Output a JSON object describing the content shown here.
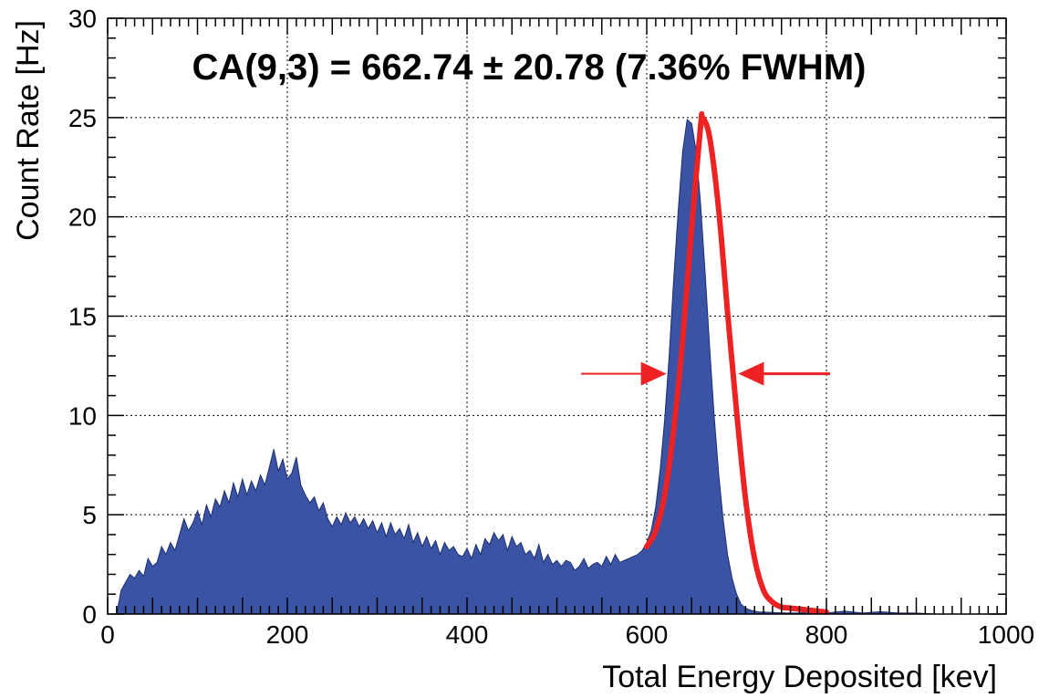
{
  "chart_data": {
    "type": "area",
    "title": "CA(9,3) = 662.74 ± 20.78 (7.36% FWHM)",
    "xlabel": "Total Energy Deposited [kev]",
    "ylabel": "Count Rate [Hz]",
    "xlim": [
      0,
      1000
    ],
    "ylim": [
      0,
      30
    ],
    "xticks": [
      0,
      200,
      400,
      600,
      800,
      1000
    ],
    "yticks": [
      0,
      5,
      10,
      15,
      20,
      25,
      30
    ],
    "grid": true,
    "fill_color": "#3a53a4",
    "fit_color": "#ee2222",
    "arrow_color": "#ee2222",
    "series": [
      {
        "type": "histogram",
        "x": [
          10,
          15,
          20,
          25,
          30,
          35,
          40,
          45,
          50,
          55,
          60,
          65,
          70,
          75,
          80,
          85,
          90,
          95,
          100,
          105,
          110,
          115,
          120,
          125,
          130,
          135,
          140,
          145,
          150,
          155,
          160,
          165,
          170,
          175,
          180,
          185,
          190,
          195,
          200,
          205,
          210,
          215,
          220,
          225,
          230,
          235,
          240,
          245,
          250,
          255,
          260,
          265,
          270,
          275,
          280,
          285,
          290,
          295,
          300,
          305,
          310,
          315,
          320,
          325,
          330,
          335,
          340,
          345,
          350,
          355,
          360,
          365,
          370,
          375,
          380,
          385,
          390,
          395,
          400,
          405,
          410,
          415,
          420,
          425,
          430,
          435,
          440,
          445,
          450,
          455,
          460,
          465,
          470,
          475,
          480,
          485,
          490,
          495,
          500,
          505,
          510,
          515,
          520,
          525,
          530,
          535,
          540,
          545,
          550,
          555,
          560,
          565,
          570,
          575,
          580,
          585,
          590,
          595,
          600,
          605,
          610,
          615,
          620,
          625,
          630,
          635,
          640,
          645,
          650,
          655,
          660,
          665,
          670,
          675,
          680,
          685,
          690,
          695,
          700,
          705,
          710,
          715,
          720,
          725,
          730,
          740,
          750,
          760,
          770,
          780,
          800,
          820,
          840,
          860,
          880,
          900,
          920,
          940,
          960,
          980,
          990
        ],
        "y": [
          0.0,
          1.2,
          1.6,
          2.0,
          1.8,
          2.2,
          1.9,
          2.8,
          2.4,
          2.6,
          3.4,
          3.0,
          3.6,
          3.2,
          4.0,
          4.8,
          4.2,
          4.6,
          5.2,
          4.5,
          5.5,
          4.9,
          5.8,
          5.4,
          6.2,
          5.6,
          6.6,
          5.9,
          6.8,
          6.0,
          6.7,
          6.2,
          7.0,
          6.5,
          7.4,
          8.3,
          7.2,
          7.8,
          6.8,
          7.1,
          7.9,
          6.5,
          6.0,
          5.6,
          5.9,
          5.2,
          5.6,
          4.8,
          4.4,
          4.9,
          4.5,
          5.1,
          4.6,
          4.9,
          4.4,
          4.8,
          4.3,
          4.7,
          4.1,
          4.6,
          3.9,
          4.6,
          4.0,
          4.3,
          3.8,
          4.5,
          3.6,
          4.1,
          3.4,
          3.9,
          3.3,
          3.7,
          3.0,
          3.6,
          3.2,
          3.4,
          3.0,
          2.9,
          3.3,
          2.8,
          3.5,
          3.0,
          3.8,
          3.5,
          4.1,
          3.7,
          4.0,
          3.2,
          3.9,
          3.4,
          3.6,
          3.0,
          3.2,
          2.8,
          3.5,
          2.6,
          3.0,
          2.5,
          2.7,
          2.4,
          2.7,
          2.6,
          2.2,
          2.4,
          2.8,
          2.3,
          2.5,
          2.6,
          2.4,
          2.9,
          2.5,
          3.0,
          2.6,
          2.7,
          2.8,
          2.9,
          3.0,
          3.2,
          3.6,
          4.2,
          5.4,
          7.3,
          9.8,
          13.0,
          16.8,
          20.3,
          23.3,
          24.9,
          24.7,
          23.3,
          20.6,
          17.2,
          13.4,
          10.0,
          7.1,
          4.8,
          3.0,
          1.8,
          1.0,
          0.5,
          0.3,
          0.2,
          0.15,
          0.1,
          0.1,
          0.08,
          0.06,
          0.05,
          0.05,
          0.1,
          0.05,
          0.15,
          0.05,
          0.12,
          0.05,
          0.05,
          0.0,
          0.0,
          0.0,
          0.0,
          0.0
        ]
      },
      {
        "type": "fit",
        "x": [
          600,
          610,
          620,
          630,
          640,
          650,
          660,
          662,
          670,
          680,
          690,
          700,
          710,
          720,
          730,
          740,
          750,
          760,
          780,
          800
        ],
        "y": [
          3.4,
          4.2,
          6.0,
          9.3,
          13.8,
          19.5,
          24.6,
          25.0,
          24.0,
          20.4,
          15.2,
          10.2,
          5.8,
          2.8,
          1.2,
          0.6,
          0.35,
          0.3,
          0.2,
          0.1
        ]
      }
    ],
    "annotations": [
      {
        "type": "arrow",
        "direction": "right",
        "y": 12.1,
        "x_from": 527,
        "x_to": 622
      },
      {
        "type": "arrow",
        "direction": "left",
        "y": 12.1,
        "x_from": 804,
        "x_to": 702
      }
    ]
  }
}
